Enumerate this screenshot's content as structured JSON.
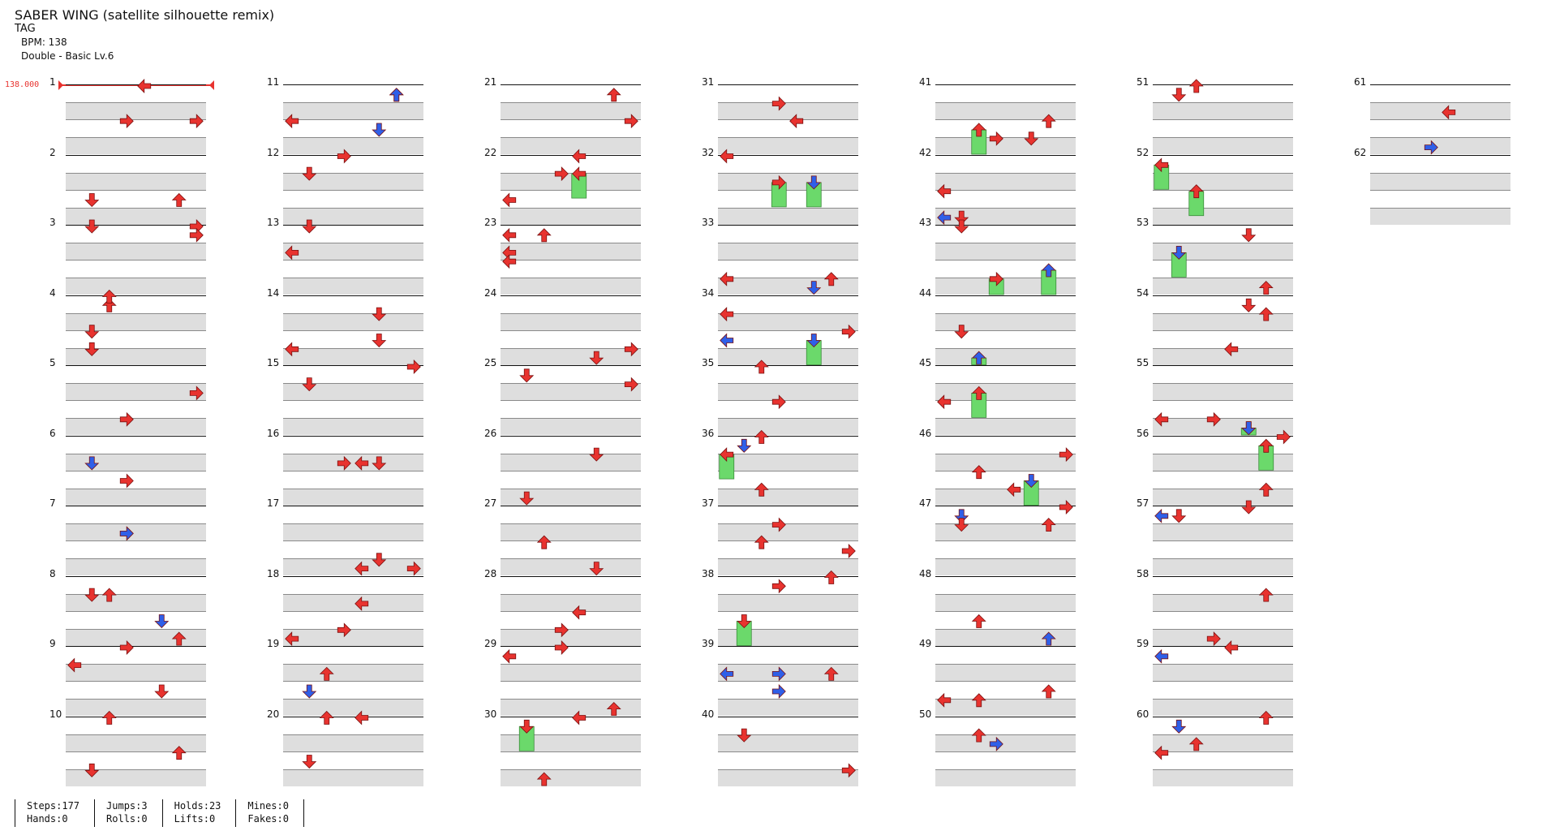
{
  "song": {
    "title": "SABER WING (satellite silhouette remix)",
    "tag": "TAG",
    "bpm_label": "BPM: 138",
    "difficulty": "Double - Basic  Lv.6"
  },
  "bpm_change": "138.000",
  "measures": [
    "1",
    "2",
    "3",
    "4",
    "5",
    "6",
    "7",
    "8",
    "9",
    "10",
    "11",
    "12",
    "13",
    "14",
    "15",
    "16",
    "17",
    "18",
    "19",
    "20",
    "21",
    "22",
    "23",
    "24",
    "25",
    "26",
    "27",
    "28",
    "29",
    "30",
    "31",
    "32",
    "33",
    "34",
    "35",
    "36",
    "37",
    "38",
    "39",
    "40",
    "41",
    "42",
    "43",
    "44",
    "45",
    "46",
    "47",
    "48",
    "49",
    "50",
    "51",
    "52",
    "53",
    "54",
    "55",
    "56",
    "57",
    "58",
    "59",
    "60",
    "61",
    "62"
  ],
  "colors": {
    "quarter": "#e8332f",
    "eighth": "#2f5fe8",
    "hold": "#6bd96b",
    "band": "#dedede"
  },
  "stats": {
    "steps": "Steps:177",
    "hands": "Hands:0",
    "jumps": "Jumps:3",
    "rolls": "Rolls:0",
    "holds": "Holds:23",
    "lifts": "Lifts:0",
    "mines": "Mines:0",
    "fakes": "Fakes:0"
  }
}
